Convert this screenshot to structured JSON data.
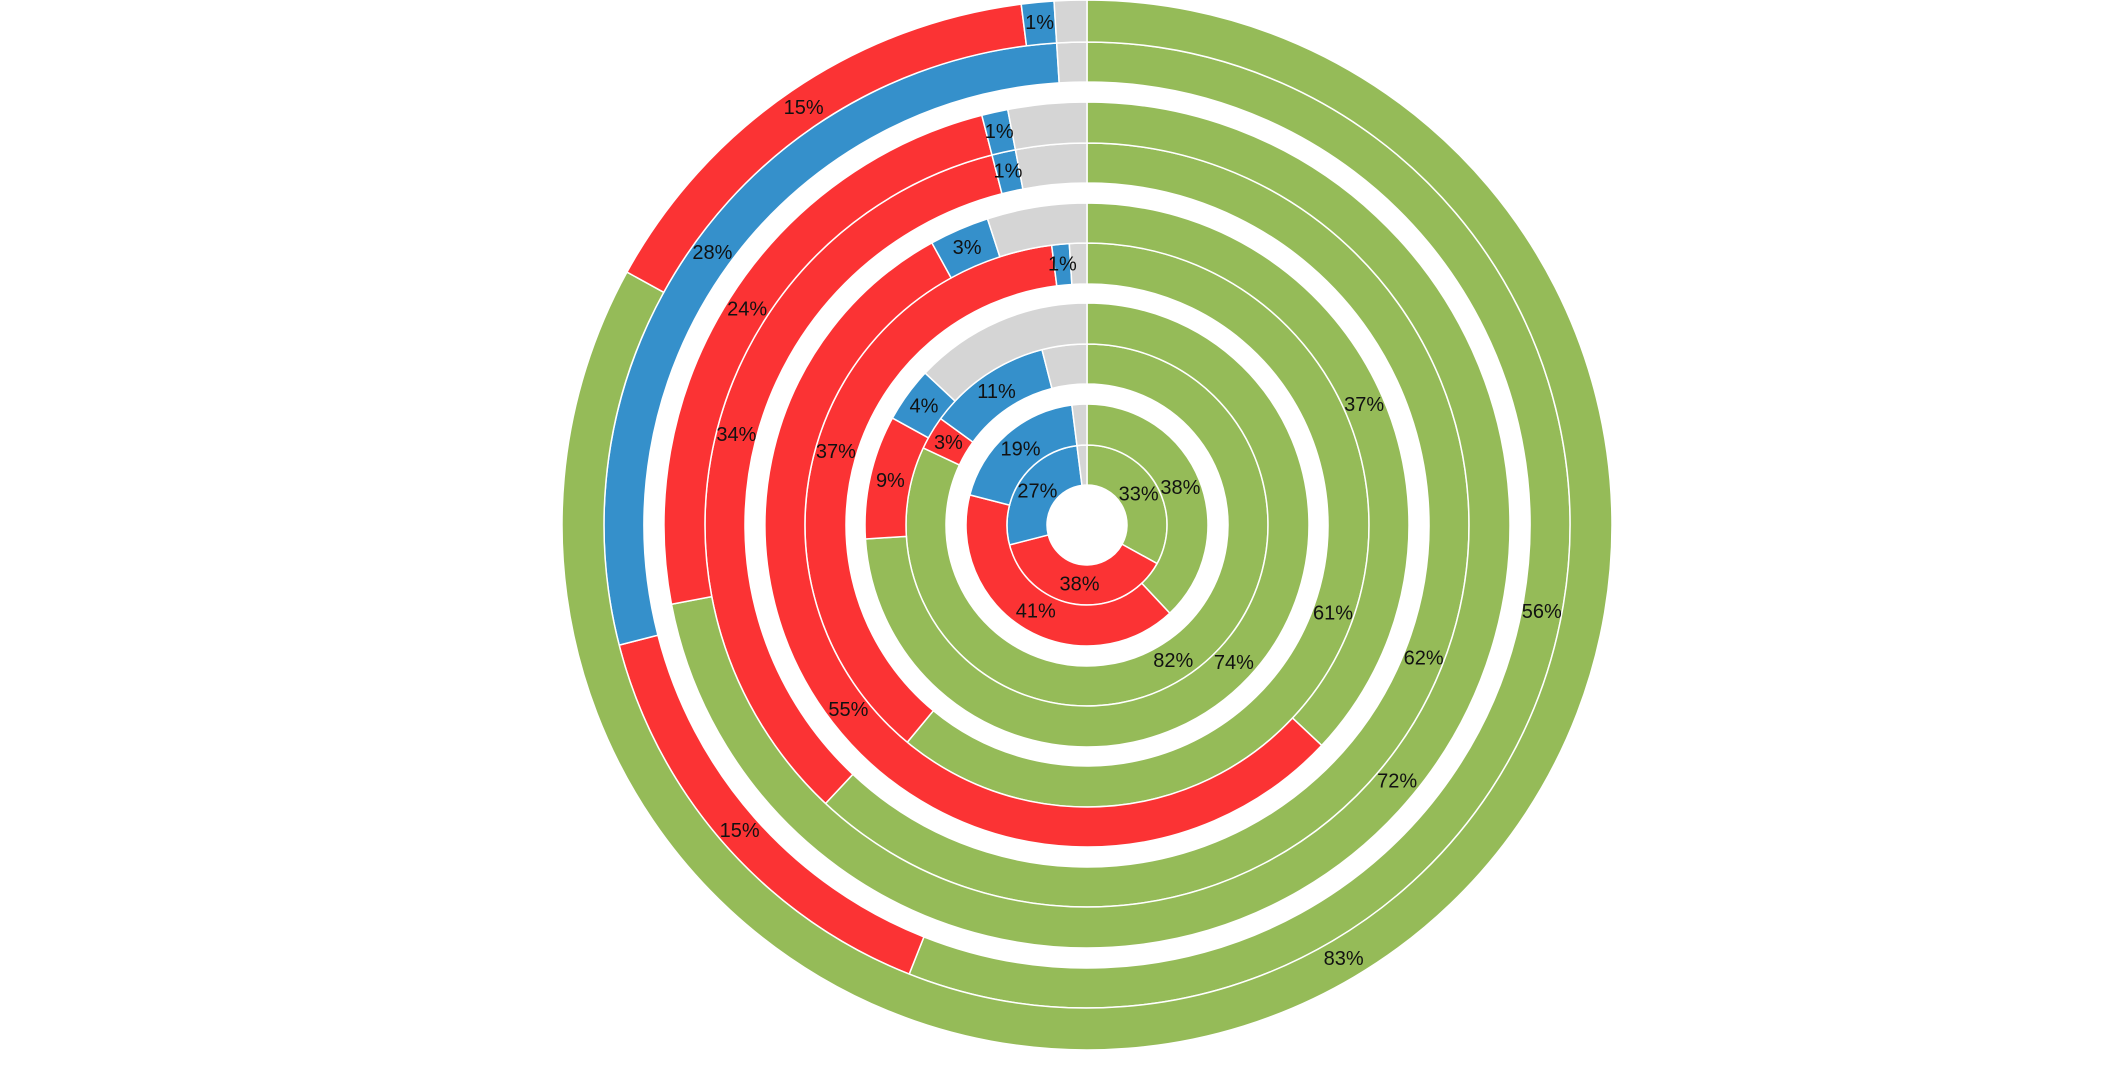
{
  "chart_data": {
    "type": "pie",
    "subtype": "nested-donut",
    "title": "",
    "colors": {
      "green": "#95bb58",
      "red": "#fb3334",
      "blue": "#3590cb",
      "gray": "#d5d5d5",
      "separator": "#ffffff"
    },
    "segment_order": [
      "green",
      "red",
      "blue",
      "gray"
    ],
    "rings": [
      {
        "slices": [
          {
            "color": "green",
            "value": 33,
            "label": "33%"
          },
          {
            "color": "red",
            "value": 38,
            "label": "38%"
          },
          {
            "color": "blue",
            "value": 27,
            "label": "27%"
          },
          {
            "color": "gray",
            "value": 2,
            "label": ""
          }
        ]
      },
      {
        "slices": [
          {
            "color": "green",
            "value": 38,
            "label": "38%"
          },
          {
            "color": "red",
            "value": 41,
            "label": "41%"
          },
          {
            "color": "blue",
            "value": 19,
            "label": "19%"
          },
          {
            "color": "gray",
            "value": 2,
            "label": ""
          }
        ]
      },
      {
        "slices": [
          {
            "color": "green",
            "value": 82,
            "label": "82%"
          },
          {
            "color": "red",
            "value": 3,
            "label": "3%"
          },
          {
            "color": "blue",
            "value": 11,
            "label": "11%"
          },
          {
            "color": "gray",
            "value": 4,
            "label": ""
          }
        ]
      },
      {
        "slices": [
          {
            "color": "green",
            "value": 74,
            "label": "74%"
          },
          {
            "color": "red",
            "value": 9,
            "label": "9%"
          },
          {
            "color": "blue",
            "value": 4,
            "label": "4%"
          },
          {
            "color": "gray",
            "value": 13,
            "label": ""
          }
        ]
      },
      {
        "slices": [
          {
            "color": "green",
            "value": 61,
            "label": "61%"
          },
          {
            "color": "red",
            "value": 37,
            "label": "37%"
          },
          {
            "color": "blue",
            "value": 1,
            "label": "1%"
          },
          {
            "color": "gray",
            "value": 1,
            "label": ""
          }
        ]
      },
      {
        "slices": [
          {
            "color": "green",
            "value": 37,
            "label": "37%"
          },
          {
            "color": "red",
            "value": 55,
            "label": "55%"
          },
          {
            "color": "blue",
            "value": 3,
            "label": "3%"
          },
          {
            "color": "gray",
            "value": 5,
            "label": ""
          }
        ]
      },
      {
        "slices": [
          {
            "color": "green",
            "value": 62,
            "label": "62%"
          },
          {
            "color": "red",
            "value": 34,
            "label": "34%"
          },
          {
            "color": "blue",
            "value": 1,
            "label": "1%"
          },
          {
            "color": "gray",
            "value": 3,
            "label": ""
          }
        ]
      },
      {
        "slices": [
          {
            "color": "green",
            "value": 72,
            "label": "72%"
          },
          {
            "color": "red",
            "value": 24,
            "label": "24%"
          },
          {
            "color": "blue",
            "value": 1,
            "label": "1%"
          },
          {
            "color": "gray",
            "value": 3,
            "label": ""
          }
        ]
      },
      {
        "slices": [
          {
            "color": "green",
            "value": 56,
            "label": "56%"
          },
          {
            "color": "red",
            "value": 15,
            "label": "15%"
          },
          {
            "color": "blue",
            "value": 28,
            "label": "28%"
          },
          {
            "color": "gray",
            "value": 1,
            "label": ""
          }
        ]
      },
      {
        "slices": [
          {
            "color": "green",
            "value": 83,
            "label": "83%"
          },
          {
            "color": "red",
            "value": 15,
            "label": "15%"
          },
          {
            "color": "blue",
            "value": 1,
            "label": "1%"
          },
          {
            "color": "gray",
            "value": 1,
            "label": ""
          }
        ]
      }
    ]
  }
}
